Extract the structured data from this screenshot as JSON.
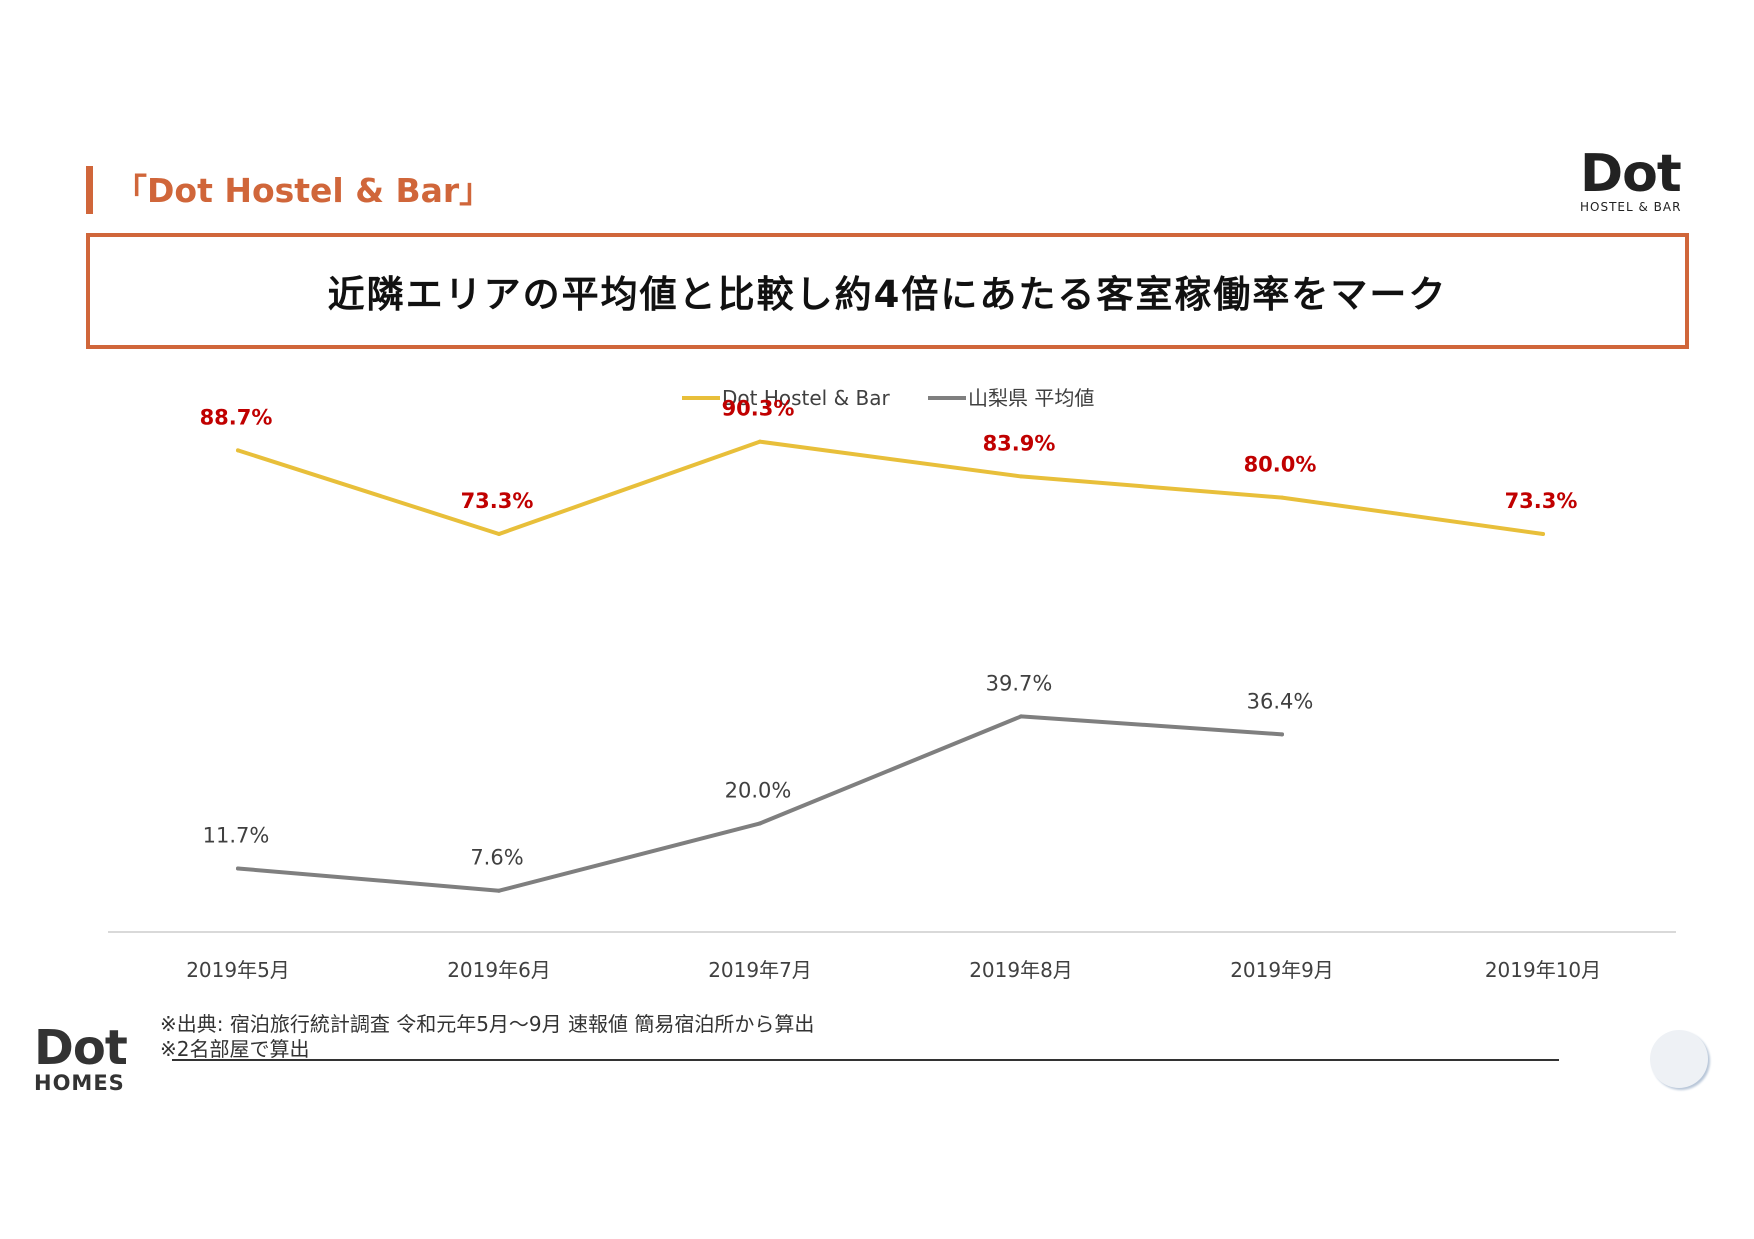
{
  "section_title": "「Dot Hostel & Bar」",
  "brand_logo": {
    "wordmark": "Dot",
    "sub": "HOSTEL & BAR"
  },
  "headline": "近隣エリアの平均値と比較し約4倍にあたる客室稼働率をマーク",
  "chart_data": {
    "type": "line",
    "categories": [
      "2019年5月",
      "2019年6月",
      "2019年7月",
      "2019年8月",
      "2019年9月",
      "2019年10月"
    ],
    "series": [
      {
        "name": "Dot Hostel & Bar",
        "values": [
          88.7,
          73.3,
          90.3,
          83.9,
          80.0,
          73.3
        ],
        "labels": [
          "88.7%",
          "73.3%",
          "90.3%",
          "83.9%",
          "80.0%",
          "73.3%"
        ],
        "color": "#e8bf3a",
        "label_color": "#c00000"
      },
      {
        "name": "山梨県 平均値",
        "values": [
          11.7,
          7.6,
          20.0,
          39.7,
          36.4,
          null
        ],
        "labels": [
          "11.7%",
          "7.6%",
          "20.0%",
          "39.7%",
          "36.4%",
          null
        ],
        "color": "#7f7f7f",
        "label_color": "#404040"
      }
    ],
    "ylim": [
      0,
      100
    ],
    "unit": "%",
    "legend": "top",
    "grid": false
  },
  "footnotes": [
    "※出典: 宿泊旅行統計調査 令和元年5月～9月 速報値 簡易宿泊所から算出",
    "※2名部屋で算出"
  ],
  "footer_logo": {
    "wordmark": "Dot",
    "sub": "HOMES"
  }
}
